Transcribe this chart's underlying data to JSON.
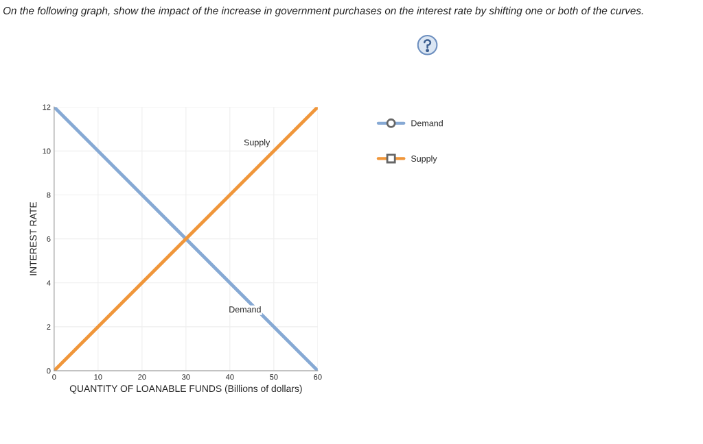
{
  "chart_data": {
    "type": "line",
    "title": "On the following graph, show the impact of the increase in government purchases on the interest rate by shifting one or both of the curves.",
    "xlabel": "QUANTITY OF LOANABLE FUNDS (Billions of dollars)",
    "ylabel": "INTEREST RATE",
    "series": [
      {
        "name": "Demand",
        "color": "#86a9d4",
        "values": [
          12,
          0
        ]
      },
      {
        "name": "Supply",
        "color": "#f0963a",
        "values": [
          0,
          12
        ]
      }
    ],
    "x": [
      0,
      60
    ],
    "annotations": [
      {
        "text": "Supply",
        "x": 50,
        "y": 10
      },
      {
        "text": "Demand",
        "x": 48,
        "y": 2.4
      }
    ],
    "xlim": [
      0,
      60
    ],
    "xticks": [
      0,
      10,
      20,
      30,
      40,
      50,
      60
    ],
    "ylim": [
      0,
      12
    ],
    "yticks": [
      0,
      2,
      4,
      6,
      8,
      10,
      12
    ],
    "grid": true,
    "legend": "right"
  }
}
